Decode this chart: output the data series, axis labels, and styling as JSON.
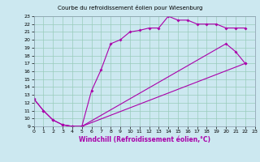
{
  "title": "Courbe du refroidissement éolien pour Wiesenburg",
  "xlabel": "Windchill (Refroidissement éolien,°C)",
  "bg_color": "#cce8f0",
  "line_color": "#aa00aa",
  "grid_color": "#99ccbb",
  "xmin": 0,
  "xmax": 23,
  "ymin": 9,
  "ymax": 23,
  "lines": [
    [
      [
        0,
        12.5
      ],
      [
        1,
        11.0
      ],
      [
        2,
        9.8
      ],
      [
        3,
        9.2
      ],
      [
        4,
        9.0
      ],
      [
        5,
        9.0
      ],
      [
        6,
        13.5
      ],
      [
        7,
        16.2
      ],
      [
        8,
        19.5
      ],
      [
        9,
        20.0
      ],
      [
        10,
        21.0
      ],
      [
        11,
        21.2
      ],
      [
        12,
        21.5
      ],
      [
        13,
        21.5
      ],
      [
        14,
        23.0
      ],
      [
        15,
        22.5
      ],
      [
        16,
        22.5
      ],
      [
        17,
        22.0
      ],
      [
        18,
        22.0
      ],
      [
        19,
        22.0
      ],
      [
        20,
        21.5
      ],
      [
        21,
        21.5
      ],
      [
        22,
        21.5
      ]
    ],
    [
      [
        0,
        12.5
      ],
      [
        1,
        11.0
      ],
      [
        2,
        9.8
      ],
      [
        3,
        9.2
      ],
      [
        4,
        9.0
      ],
      [
        5,
        9.0
      ],
      [
        22,
        17.0
      ]
    ],
    [
      [
        3,
        9.2
      ],
      [
        4,
        9.0
      ],
      [
        5,
        9.0
      ],
      [
        20,
        19.5
      ],
      [
        21,
        18.5
      ],
      [
        22,
        17.0
      ]
    ]
  ]
}
